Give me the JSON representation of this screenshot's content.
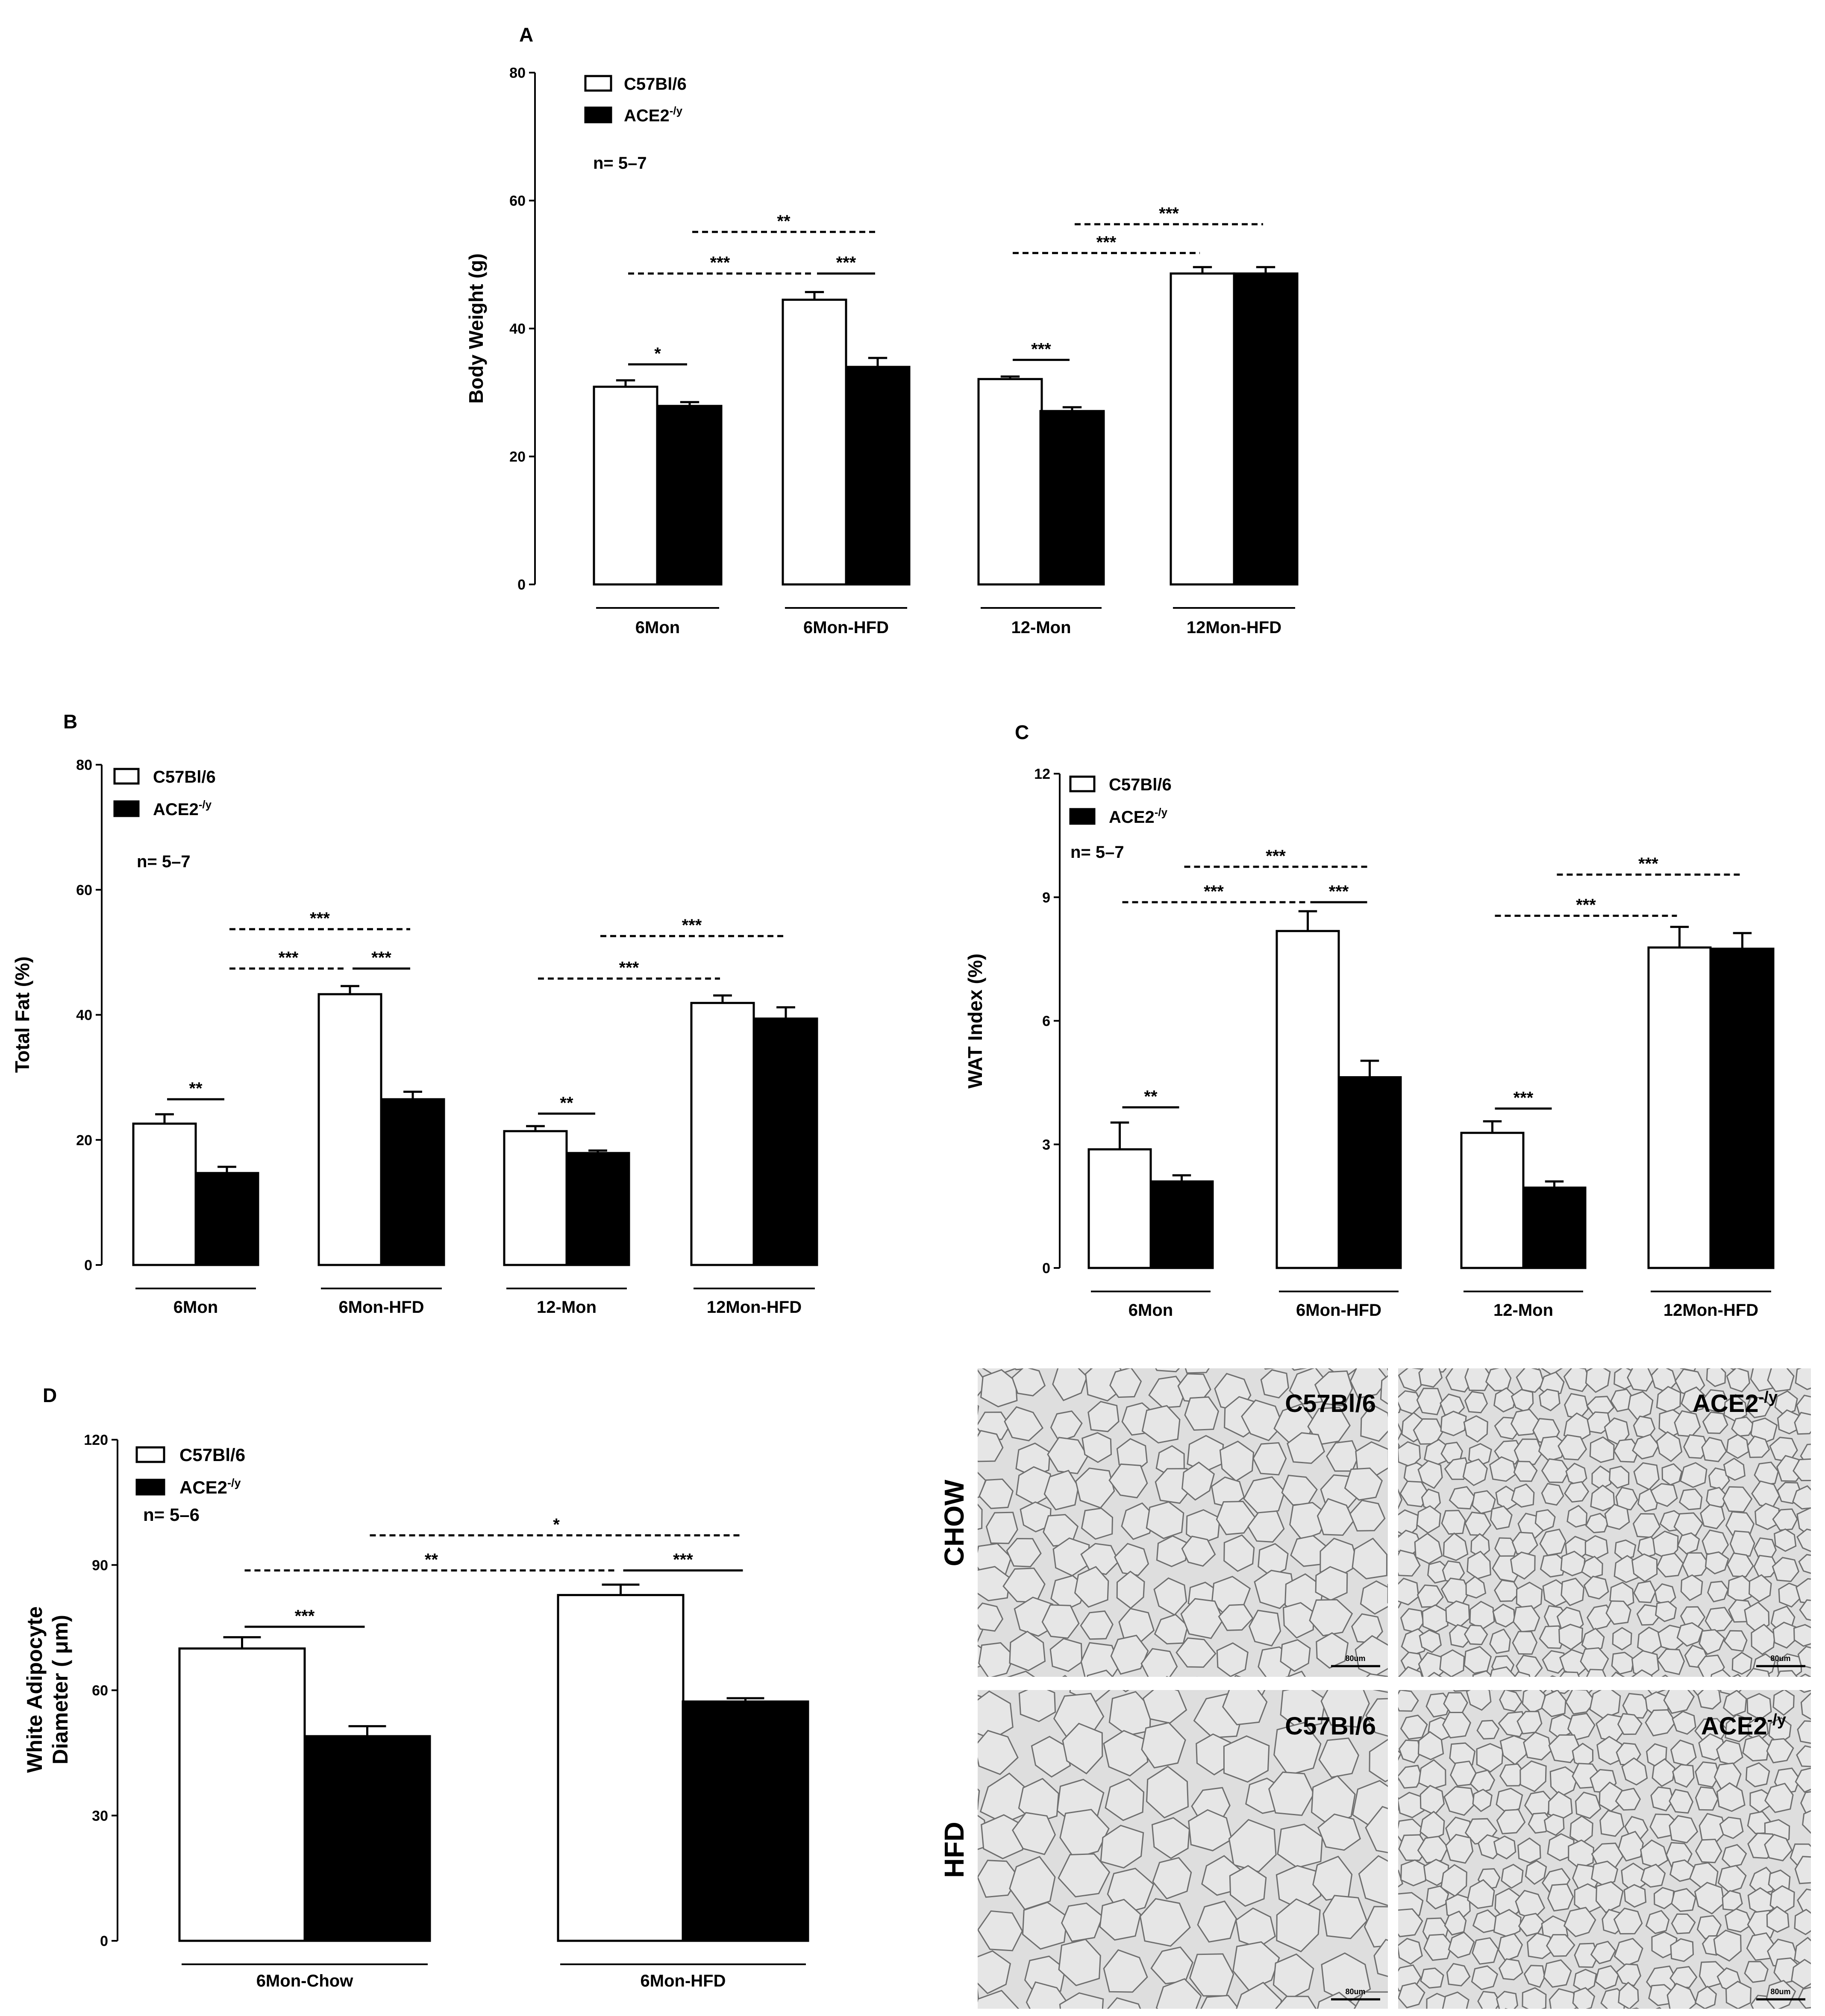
{
  "colors": {
    "wild_type": "#ffffff",
    "knockout": "#000000",
    "tissue_bg": "#dedede",
    "cell_wall": "#7a7a7a"
  },
  "chart_data": [
    {
      "panel": "A",
      "type": "bar",
      "title": "",
      "xlabel": "",
      "ylabel": "Body Weight (g)",
      "ylim": [
        0,
        80
      ],
      "yticks": [
        0,
        20,
        40,
        60,
        80
      ],
      "categories": [
        "6Mon",
        "6Mon-HFD",
        "12-Mon",
        "12Mon-HFD"
      ],
      "series": [
        {
          "name": "C57Bl/6",
          "values": [
            30.9,
            44.5,
            32.1,
            48.6
          ],
          "errors": [
            1.0,
            1.2,
            0.4,
            1.0
          ]
        },
        {
          "name": "ACE2-/y",
          "values": [
            27.9,
            34.0,
            27.1,
            48.6
          ],
          "errors": [
            0.6,
            1.4,
            0.6,
            1.0
          ]
        }
      ],
      "legend": {
        "placement": "top-left",
        "labels": [
          "C57Bl/6",
          "ACE2-/y"
        ]
      },
      "annotations": [
        "n= 5–7"
      ],
      "grid": false,
      "significance": [
        {
          "from": [
            0,
            0
          ],
          "to": [
            0,
            1
          ],
          "label": "*",
          "style": "solid",
          "y": 34.4
        },
        {
          "from": [
            0,
            0
          ],
          "to": [
            1,
            0
          ],
          "label": "***",
          "style": "dashed",
          "y": 48.6
        },
        {
          "from": [
            1,
            0
          ],
          "to": [
            1,
            1
          ],
          "label": "***",
          "style": "solid",
          "y": 48.6
        },
        {
          "from": [
            0,
            1
          ],
          "to": [
            1,
            1
          ],
          "label": "**",
          "style": "dashed",
          "y": 55.1
        },
        {
          "from": [
            2,
            0
          ],
          "to": [
            2,
            1
          ],
          "label": "***",
          "style": "solid",
          "y": 35.1
        },
        {
          "from": [
            2,
            0
          ],
          "to": [
            3,
            0
          ],
          "label": "***",
          "style": "dashed",
          "y": 51.8
        },
        {
          "from": [
            2,
            1
          ],
          "to": [
            3,
            1
          ],
          "label": "***",
          "style": "dashed",
          "y": 56.3
        }
      ]
    },
    {
      "panel": "B",
      "type": "bar",
      "title": "",
      "xlabel": "",
      "ylabel": "Total Fat (%)",
      "ylim": [
        0,
        80
      ],
      "yticks": [
        0,
        20,
        40,
        60,
        80
      ],
      "categories": [
        "6Mon",
        "6Mon-HFD",
        "12-Mon",
        "12Mon-HFD"
      ],
      "series": [
        {
          "name": "C57Bl/6",
          "values": [
            22.6,
            43.3,
            21.4,
            41.9
          ],
          "errors": [
            1.5,
            1.3,
            0.8,
            1.2
          ]
        },
        {
          "name": "ACE2-/y",
          "values": [
            14.7,
            26.5,
            17.9,
            39.4
          ],
          "errors": [
            1.0,
            1.2,
            0.4,
            1.8
          ]
        }
      ],
      "legend": {
        "placement": "top-left",
        "labels": [
          "C57Bl/6",
          "ACE2-/y"
        ]
      },
      "annotations": [
        "n= 5–7"
      ],
      "grid": false,
      "significance": [
        {
          "from": [
            0,
            0
          ],
          "to": [
            0,
            1
          ],
          "label": "**",
          "style": "solid",
          "y": 26.5
        },
        {
          "from": [
            0,
            1
          ],
          "to": [
            1,
            0
          ],
          "label": "***",
          "style": "dashed",
          "y": 47.4
        },
        {
          "from": [
            1,
            0
          ],
          "to": [
            1,
            1
          ],
          "label": "***",
          "style": "solid",
          "y": 47.4
        },
        {
          "from": [
            0,
            1
          ],
          "to": [
            1,
            1
          ],
          "label": "***",
          "style": "dashed",
          "y": 53.7
        },
        {
          "from": [
            2,
            0
          ],
          "to": [
            2,
            1
          ],
          "label": "**",
          "style": "solid",
          "y": 24.2
        },
        {
          "from": [
            2,
            0
          ],
          "to": [
            3,
            0
          ],
          "label": "***",
          "style": "dashed",
          "y": 45.8
        },
        {
          "from": [
            2,
            1
          ],
          "to": [
            3,
            1
          ],
          "label": "***",
          "style": "dashed",
          "y": 52.6
        }
      ]
    },
    {
      "panel": "C",
      "type": "bar",
      "title": "",
      "xlabel": "",
      "ylabel": "WAT Index (%)",
      "ylim": [
        0,
        12
      ],
      "yticks": [
        0,
        3,
        6,
        9,
        12
      ],
      "categories": [
        "6Mon",
        "6Mon-HFD",
        "12-Mon",
        "12Mon-HFD"
      ],
      "series": [
        {
          "name": "C57Bl/6",
          "values": [
            2.88,
            8.18,
            3.28,
            7.78
          ],
          "errors": [
            0.65,
            0.48,
            0.28,
            0.5
          ]
        },
        {
          "name": "ACE2-/y",
          "values": [
            2.1,
            4.63,
            1.95,
            7.75
          ],
          "errors": [
            0.15,
            0.4,
            0.15,
            0.38
          ]
        }
      ],
      "legend": {
        "placement": "top-left",
        "labels": [
          "C57Bl/6",
          "ACE2-/y"
        ]
      },
      "annotations": [
        "n= 5–7"
      ],
      "grid": false,
      "significance": [
        {
          "from": [
            0,
            0
          ],
          "to": [
            0,
            1
          ],
          "label": "**",
          "style": "solid",
          "y": 3.9
        },
        {
          "from": [
            0,
            0
          ],
          "to": [
            1,
            0
          ],
          "label": "***",
          "style": "dashed",
          "y": 8.88
        },
        {
          "from": [
            1,
            0
          ],
          "to": [
            1,
            1
          ],
          "label": "***",
          "style": "solid",
          "y": 8.88
        },
        {
          "from": [
            0,
            1
          ],
          "to": [
            1,
            1
          ],
          "label": "***",
          "style": "dashed",
          "y": 9.74
        },
        {
          "from": [
            2,
            0
          ],
          "to": [
            2,
            1
          ],
          "label": "***",
          "style": "solid",
          "y": 3.87
        },
        {
          "from": [
            2,
            0
          ],
          "to": [
            3,
            0
          ],
          "label": "***",
          "style": "dashed",
          "y": 8.55
        },
        {
          "from": [
            2,
            1
          ],
          "to": [
            3,
            1
          ],
          "label": "***",
          "style": "dashed",
          "y": 9.55
        }
      ]
    },
    {
      "panel": "D",
      "type": "bar",
      "title": "",
      "xlabel": "",
      "ylabel": "White Adipocyte Diameter ( μm)",
      "ylabel_lines": [
        "White Adipocyte",
        "Diameter ( μm)"
      ],
      "ylim": [
        0,
        120
      ],
      "yticks": [
        0,
        30,
        60,
        90,
        120
      ],
      "categories": [
        "6Mon-Chow",
        "6Mon-HFD"
      ],
      "series": [
        {
          "name": "C57Bl/6",
          "values": [
            70.0,
            82.8
          ],
          "errors": [
            2.7,
            2.5
          ]
        },
        {
          "name": "ACE2-/y",
          "values": [
            49.0,
            57.3
          ],
          "errors": [
            2.4,
            0.8
          ]
        }
      ],
      "legend": {
        "placement": "top-left",
        "labels": [
          "C57Bl/6",
          "ACE2-/y"
        ]
      },
      "annotations": [
        "n= 5–6"
      ],
      "grid": false,
      "significance": [
        {
          "from": [
            0,
            0
          ],
          "to": [
            0,
            1
          ],
          "label": "***",
          "style": "solid",
          "y": 75.2
        },
        {
          "from": [
            0,
            0
          ],
          "to": [
            1,
            0
          ],
          "label": "**",
          "style": "dashed",
          "y": 88.7
        },
        {
          "from": [
            1,
            0
          ],
          "to": [
            1,
            1
          ],
          "label": "***",
          "style": "solid",
          "y": 88.7
        },
        {
          "from": [
            0,
            1
          ],
          "to": [
            1,
            1
          ],
          "label": "*",
          "style": "dashed",
          "y": 97.1
        }
      ]
    }
  ],
  "micrographs": {
    "row_labels": [
      "CHOW",
      "HFD"
    ],
    "tiles": [
      {
        "label": "C57Bl/6",
        "scale_bar": "80um"
      },
      {
        "label": "ACE2-/y",
        "scale_bar": "80um"
      },
      {
        "label": "C57Bl/6",
        "scale_bar": "80um"
      },
      {
        "label": "ACE2-/y",
        "scale_bar": "80um"
      }
    ]
  }
}
